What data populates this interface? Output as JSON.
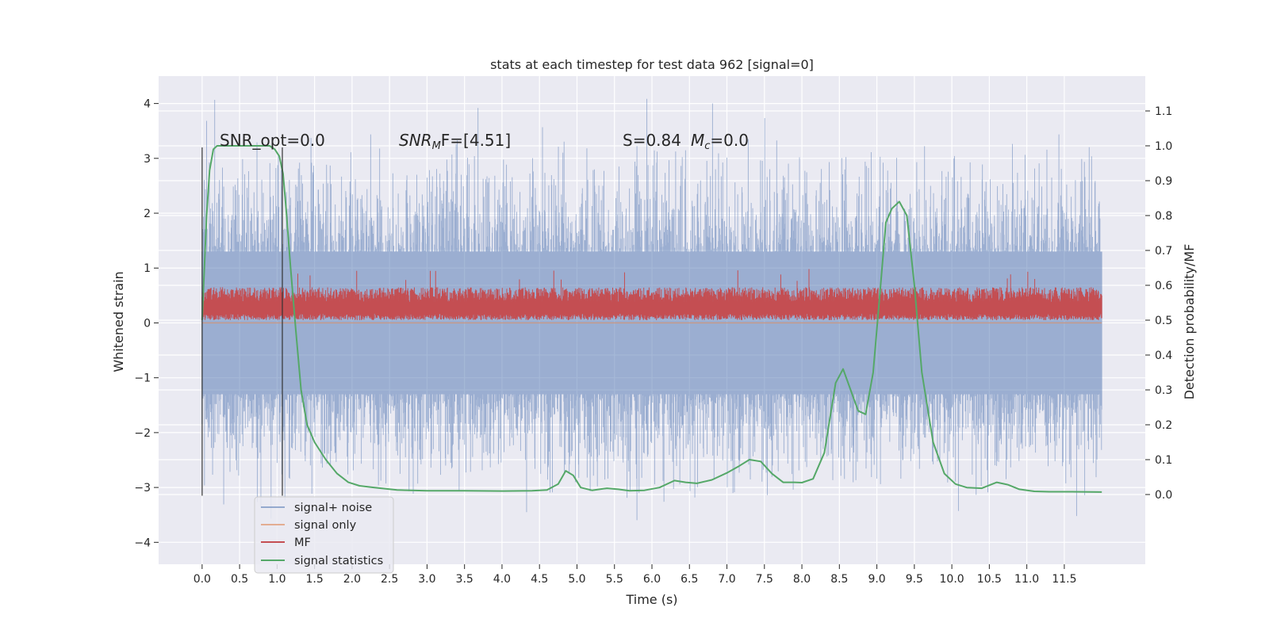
{
  "chart_data": {
    "type": "line",
    "title": "stats at each timestep for test data 962 [signal=0]",
    "xlabel": "Time (s)",
    "ylabel": "Whitened strain",
    "y2label": "Detection probability/MF",
    "xlim": [
      -0.58,
      12.58
    ],
    "ylim": [
      -4.4,
      4.5
    ],
    "y2lim": [
      -0.2,
      1.2
    ],
    "xticks": [
      "0.0",
      "0.5",
      "1.0",
      "1.5",
      "2.0",
      "2.5",
      "3.0",
      "3.5",
      "4.0",
      "4.5",
      "5.0",
      "5.5",
      "6.0",
      "6.5",
      "7.0",
      "7.5",
      "8.0",
      "8.5",
      "9.0",
      "9.5",
      "10.0",
      "10.5",
      "11.0",
      "11.5"
    ],
    "yticks": [
      "4",
      "3",
      "2",
      "1",
      "0",
      "−1",
      "−2",
      "−3",
      "−4"
    ],
    "y2ticks": [
      "1.1",
      "1.0",
      "0.9",
      "0.8",
      "0.7",
      "0.6",
      "0.5",
      "0.4",
      "0.3",
      "0.2",
      "0.1",
      "0.0"
    ],
    "grid": true,
    "legend_position": "lower-left",
    "series": [
      {
        "name": "signal+ noise",
        "color": "#4c72b0",
        "axis": "left",
        "style": "dense noise band",
        "x_range": [
          0,
          12
        ],
        "band_abs": 1.3,
        "peak_abs": 4.1
      },
      {
        "name": "signal only",
        "color": "#dd8452",
        "axis": "left",
        "style": "flat zero line",
        "x_range": [
          0,
          12
        ]
      },
      {
        "name": "MF",
        "color": "#c44e52",
        "axis": "left",
        "style": "dense noise band",
        "x_range": [
          0,
          12
        ],
        "band": [
          0.05,
          0.65
        ],
        "peak": 1.0
      },
      {
        "name": "signal statistics",
        "color": "#55a868",
        "axis": "right",
        "x": [
          0.0,
          0.03,
          0.06,
          0.1,
          0.15,
          0.2,
          0.3,
          0.5,
          0.8,
          0.9,
          0.97,
          1.03,
          1.08,
          1.12,
          1.18,
          1.25,
          1.32,
          1.4,
          1.5,
          1.65,
          1.8,
          1.95,
          2.1,
          2.3,
          2.6,
          3.0,
          3.5,
          4.0,
          4.4,
          4.6,
          4.75,
          4.85,
          4.95,
          5.05,
          5.2,
          5.4,
          5.55,
          5.7,
          5.9,
          6.1,
          6.3,
          6.45,
          6.6,
          6.8,
          7.0,
          7.15,
          7.3,
          7.45,
          7.6,
          7.75,
          7.9,
          8.0,
          8.15,
          8.3,
          8.45,
          8.55,
          8.65,
          8.75,
          8.85,
          8.95,
          9.05,
          9.12,
          9.2,
          9.3,
          9.4,
          9.5,
          9.6,
          9.75,
          9.9,
          10.05,
          10.2,
          10.4,
          10.6,
          10.75,
          10.9,
          11.1,
          11.3,
          11.6,
          12.0
        ],
        "values": [
          0.5,
          0.65,
          0.8,
          0.93,
          0.99,
          1.0,
          1.0,
          1.0,
          1.0,
          1.0,
          0.99,
          0.97,
          0.92,
          0.82,
          0.65,
          0.47,
          0.3,
          0.2,
          0.15,
          0.1,
          0.06,
          0.035,
          0.025,
          0.02,
          0.013,
          0.011,
          0.011,
          0.01,
          0.011,
          0.013,
          0.03,
          0.068,
          0.055,
          0.02,
          0.012,
          0.018,
          0.015,
          0.011,
          0.012,
          0.02,
          0.04,
          0.035,
          0.032,
          0.042,
          0.062,
          0.08,
          0.1,
          0.095,
          0.06,
          0.035,
          0.035,
          0.034,
          0.045,
          0.12,
          0.32,
          0.36,
          0.3,
          0.24,
          0.23,
          0.35,
          0.6,
          0.78,
          0.82,
          0.84,
          0.8,
          0.6,
          0.35,
          0.15,
          0.06,
          0.03,
          0.02,
          0.018,
          0.035,
          0.028,
          0.015,
          0.009,
          0.008,
          0.008,
          0.007
        ]
      }
    ],
    "annotations": [
      {
        "text": "SNR_opt=0.0",
        "x": 0.2,
        "y2": 1.015
      },
      {
        "text": "SNR",
        "sub": "M",
        "tail": "F=[4.51]",
        "italic_part": "SNR",
        "x": 2.6,
        "y2": 1.015
      },
      {
        "text": "S=0.84",
        "sub_text": "M",
        "sub": "c",
        "tail": "=0.0",
        "x": 5.55,
        "y2": 1.015
      }
    ],
    "vlines": [
      0.0,
      1.07
    ]
  }
}
